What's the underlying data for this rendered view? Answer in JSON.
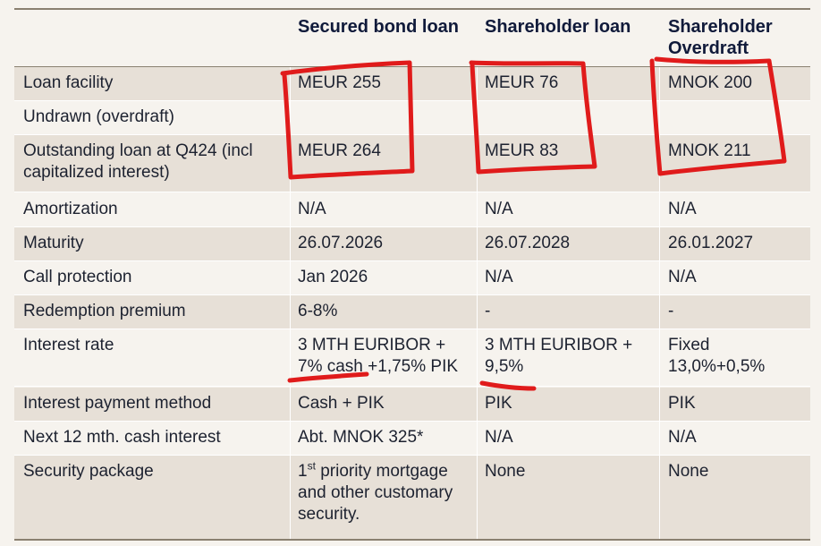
{
  "headers": [
    "Secured bond loan",
    "Shareholder loan",
    "Shareholder Overdraft"
  ],
  "rows": [
    {
      "label": "Loan facility",
      "c1": "MEUR 255",
      "c2": "MEUR 76",
      "c3": "MNOK 200"
    },
    {
      "label": "Undrawn (overdraft)",
      "c1": "",
      "c2": "",
      "c3": ""
    },
    {
      "label": "Outstanding loan at Q424 (incl capitalized interest)",
      "c1": "MEUR 264",
      "c2": "MEUR 83",
      "c3": "MNOK 211"
    },
    {
      "label": "Amortization",
      "c1": "N/A",
      "c2": "N/A",
      "c3": "N/A"
    },
    {
      "label": "Maturity",
      "c1": "26.07.2026",
      "c2": "26.07.2028",
      "c3": "26.01.2027"
    },
    {
      "label": "Call protection",
      "c1": "Jan 2026",
      "c2": "N/A",
      "c3": "N/A"
    },
    {
      "label": "Redemption premium",
      "c1": "6-8%",
      "c2": "-",
      "c3": "-"
    },
    {
      "label": "Interest rate",
      "c1": "3 MTH EURIBOR + 7% cash +1,75% PIK",
      "c2": "3 MTH EURIBOR + 9,5%",
      "c3": "Fixed 13,0%+0,5%"
    },
    {
      "label": "Interest payment method",
      "c1": "Cash + PIK",
      "c2": "PIK",
      "c3": "PIK"
    },
    {
      "label": "Next 12 mth. cash interest",
      "c1": "Abt. MNOK 325*",
      "c2": "N/A",
      "c3": "N/A"
    },
    {
      "label": "Security package",
      "c1_sup": "st",
      "c1_pre": "1",
      "c1_rest": " priority mortgage and other customary security.",
      "c2": "None",
      "c3": "None"
    }
  ],
  "annotation_color": "#e01b1b"
}
